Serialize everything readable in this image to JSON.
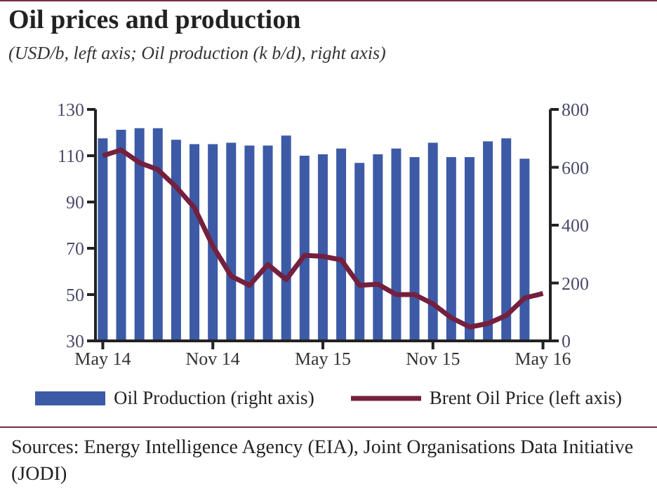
{
  "chart_data": {
    "type": "bar",
    "title": "Oil prices and production",
    "subtitle": "(USD/b, left axis; Oil production (k b/d), right axis)",
    "categories": [
      "May 14",
      null,
      null,
      null,
      null,
      null,
      "Nov 14",
      null,
      null,
      null,
      null,
      null,
      "May 15",
      null,
      null,
      null,
      null,
      null,
      "Nov 15",
      null,
      null,
      null,
      null,
      null,
      "May 16"
    ],
    "series": [
      {
        "name": "Oil Production (right axis)",
        "axis": "y2",
        "color": "#3c5aa6",
        "values": [
          700,
          730,
          735,
          735,
          695,
          680,
          680,
          685,
          675,
          675,
          710,
          640,
          645,
          665,
          615,
          645,
          665,
          635,
          685,
          635,
          635,
          690,
          700,
          630,
          null
        ]
      },
      {
        "name": "Brent Oil Price (left axis)",
        "type": "line",
        "color": "#74203f",
        "values": [
          110,
          112.5,
          107,
          104,
          96.5,
          87.5,
          71,
          58,
          54,
          63,
          56.5,
          67,
          66.5,
          65,
          54,
          54.5,
          50,
          50,
          46,
          40,
          36,
          37.5,
          41,
          48.5,
          50.5
        ]
      }
    ],
    "ylim": [
      30,
      130
    ],
    "yticks": [
      30,
      50,
      70,
      90,
      110,
      130
    ],
    "y2lim": [
      0,
      800
    ],
    "y2ticks": [
      0,
      200,
      400,
      600,
      800
    ],
    "legend": "bottom",
    "marker": "none",
    "line_style": "solid",
    "annotations": [
      "Sources: Energy Intelligence Agency (EIA), Joint Organisations Data Initiative (JODI)"
    ]
  }
}
